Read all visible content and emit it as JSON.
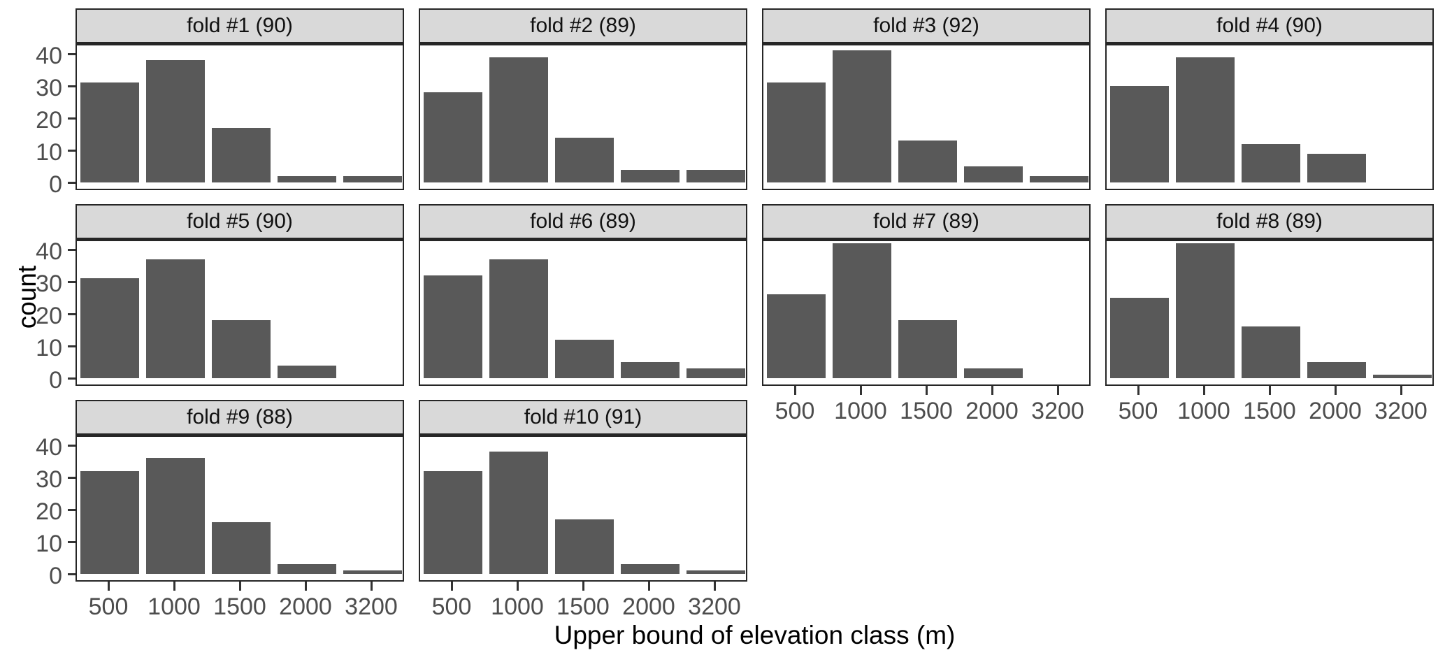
{
  "figure": {
    "kind": "faceted-histogram",
    "x_axis_title": "Upper bound of elevation class (m)",
    "y_axis_title": "count",
    "colors": {
      "bar_fill": "#595959",
      "strip_background": "#D9D9D9",
      "panel_border": "#262626",
      "axis_text": "#4D4D4D",
      "title_text": "#000000",
      "background": "#ffffff"
    }
  },
  "chart_data": {
    "type": "bar",
    "title": "",
    "xlabel": "Upper bound of elevation class (m)",
    "ylabel": "count",
    "categories": [
      "500",
      "1000",
      "1500",
      "2000",
      "3200"
    ],
    "yticks": [
      0,
      10,
      20,
      30,
      40
    ],
    "ylim": [
      0,
      44
    ],
    "grid": false,
    "legend": "none",
    "facet_layout": {
      "columns": 4,
      "rows": 3
    },
    "facets": [
      {
        "label": "fold #1 (90)",
        "total": 90,
        "values": [
          31,
          38,
          17,
          2,
          2
        ]
      },
      {
        "label": "fold #2 (89)",
        "total": 89,
        "values": [
          28,
          39,
          14,
          4,
          4
        ]
      },
      {
        "label": "fold #3 (92)",
        "total": 92,
        "values": [
          31,
          41,
          13,
          5,
          2
        ]
      },
      {
        "label": "fold #4 (90)",
        "total": 90,
        "values": [
          30,
          39,
          12,
          9,
          0
        ]
      },
      {
        "label": "fold #5 (90)",
        "total": 90,
        "values": [
          31,
          37,
          18,
          4,
          0
        ]
      },
      {
        "label": "fold #6 (89)",
        "total": 89,
        "values": [
          32,
          37,
          12,
          5,
          3
        ]
      },
      {
        "label": "fold #7 (89)",
        "total": 89,
        "values": [
          26,
          42,
          18,
          3,
          0
        ]
      },
      {
        "label": "fold #8 (89)",
        "total": 89,
        "values": [
          25,
          42,
          16,
          5,
          1
        ]
      },
      {
        "label": "fold #9 (88)",
        "total": 88,
        "values": [
          32,
          36,
          16,
          3,
          1
        ]
      },
      {
        "label": "fold #10 (91)",
        "total": 91,
        "values": [
          32,
          38,
          17,
          3,
          1
        ]
      }
    ]
  }
}
